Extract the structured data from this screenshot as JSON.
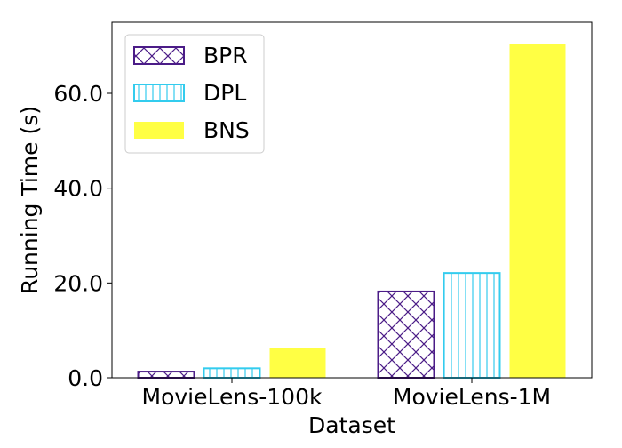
{
  "chart_data": {
    "type": "bar",
    "title": "",
    "xlabel": "Dataset",
    "ylabel": "Running Time (s)",
    "categories": [
      "MovieLens-100k",
      "MovieLens-1M"
    ],
    "series": [
      {
        "name": "BPR",
        "values": [
          1.3,
          18.2
        ],
        "color": "#4b1c87",
        "pattern": "crosshatch"
      },
      {
        "name": "DPL",
        "values": [
          2.0,
          22.1
        ],
        "color": "#33ccee",
        "pattern": "vertical-lines"
      },
      {
        "name": "BNS",
        "values": [
          6.3,
          70.5
        ],
        "color": "#ffff44",
        "pattern": "solid"
      }
    ],
    "ylim": [
      0,
      75
    ],
    "yticks": [
      0,
      20,
      40,
      60
    ],
    "ytick_labels": [
      "0.0",
      "20.0",
      "40.0",
      "60.0"
    ],
    "grid": false,
    "legend": "top-left"
  }
}
